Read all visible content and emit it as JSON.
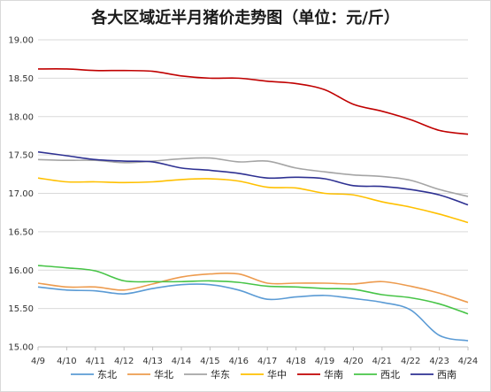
{
  "chart_data": {
    "type": "line",
    "title": "各大区域近半月猪价走势图（单位：元/斤）",
    "xlabel": "",
    "ylabel": "",
    "categories": [
      "4/9",
      "4/10",
      "4/11",
      "4/12",
      "4/13",
      "4/14",
      "4/15",
      "4/16",
      "4/17",
      "4/18",
      "4/19",
      "4/20",
      "4/21",
      "4/22",
      "4/23",
      "4/24"
    ],
    "ylim": [
      15.0,
      19.0
    ],
    "yticks": [
      "19.00",
      "18.50",
      "18.00",
      "17.50",
      "17.00",
      "16.50",
      "16.00",
      "15.50",
      "15.00"
    ],
    "grid": true,
    "legend_position": "bottom",
    "series": [
      {
        "name": "东北",
        "color": "#5b9bd5",
        "values": [
          15.78,
          15.74,
          15.73,
          15.69,
          15.76,
          15.81,
          15.81,
          15.74,
          15.62,
          15.65,
          15.67,
          15.63,
          15.58,
          15.48,
          15.15,
          15.08
        ]
      },
      {
        "name": "华北",
        "color": "#ed9b4e",
        "values": [
          15.83,
          15.78,
          15.78,
          15.74,
          15.82,
          15.91,
          15.95,
          15.95,
          15.83,
          15.83,
          15.83,
          15.82,
          15.85,
          15.79,
          15.7,
          15.58
        ]
      },
      {
        "name": "华东",
        "color": "#a5a5a5",
        "values": [
          17.44,
          17.43,
          17.43,
          17.4,
          17.42,
          17.45,
          17.46,
          17.41,
          17.42,
          17.33,
          17.28,
          17.24,
          17.22,
          17.17,
          17.05,
          16.96
        ]
      },
      {
        "name": "华中",
        "color": "#ffc000",
        "values": [
          17.2,
          17.15,
          17.15,
          17.14,
          17.15,
          17.18,
          17.19,
          17.16,
          17.08,
          17.07,
          17.0,
          16.98,
          16.89,
          16.82,
          16.73,
          16.62
        ]
      },
      {
        "name": "华南",
        "color": "#c00000",
        "values": [
          18.62,
          18.62,
          18.6,
          18.6,
          18.59,
          18.53,
          18.5,
          18.5,
          18.46,
          18.43,
          18.35,
          18.16,
          18.07,
          17.96,
          17.82,
          17.77
        ]
      },
      {
        "name": "西北",
        "color": "#47c447",
        "values": [
          16.06,
          16.03,
          15.99,
          15.86,
          15.85,
          15.85,
          15.86,
          15.84,
          15.79,
          15.78,
          15.76,
          15.75,
          15.68,
          15.64,
          15.56,
          15.43
        ]
      },
      {
        "name": "西南",
        "color": "#2e3192",
        "values": [
          17.54,
          17.49,
          17.44,
          17.42,
          17.41,
          17.33,
          17.3,
          17.26,
          17.2,
          17.21,
          17.19,
          17.1,
          17.09,
          17.05,
          16.98,
          16.85
        ]
      }
    ]
  }
}
